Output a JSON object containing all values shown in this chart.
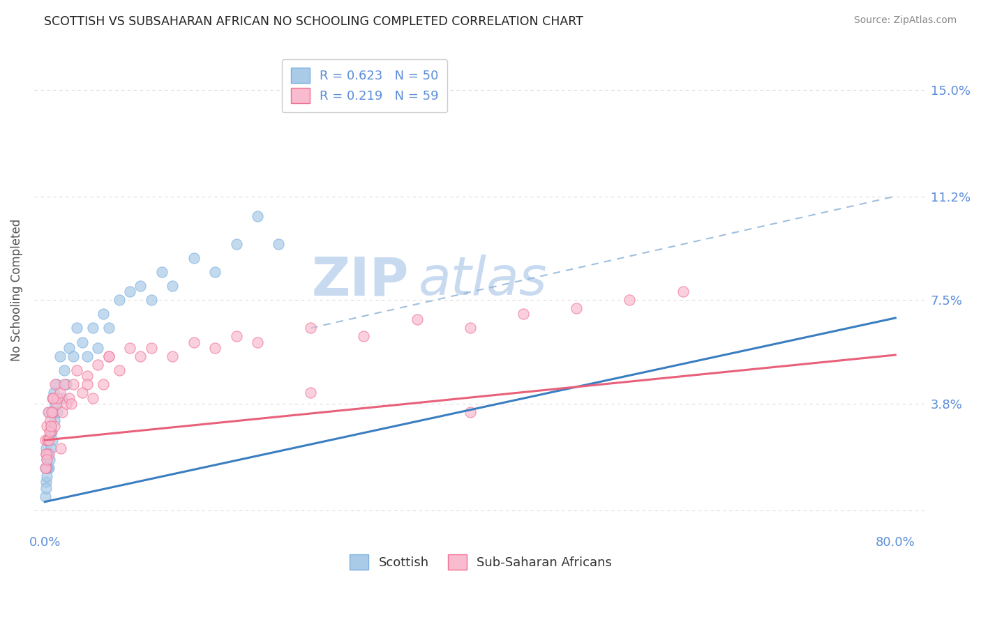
{
  "title": "SCOTTISH VS SUBSAHARAN AFRICAN NO SCHOOLING COMPLETED CORRELATION CHART",
  "source": "Source: ZipAtlas.com",
  "ylabel": "No Schooling Completed",
  "y_ticks": [
    0.0,
    3.8,
    7.5,
    11.2,
    15.0
  ],
  "y_tick_labels": [
    "",
    "3.8%",
    "7.5%",
    "11.2%",
    "15.0%"
  ],
  "xlim": [
    -1.0,
    83.0
  ],
  "ylim": [
    -0.8,
    16.5
  ],
  "legend_r_entries": [
    {
      "label": "R = 0.623   N = 50",
      "color": "#aacbe8"
    },
    {
      "label": "R = 0.219   N = 59",
      "color": "#f8bbd0"
    }
  ],
  "scottish_x": [
    0.05,
    0.1,
    0.15,
    0.2,
    0.25,
    0.3,
    0.35,
    0.4,
    0.5,
    0.6,
    0.7,
    0.8,
    0.9,
    1.0,
    1.1,
    1.2,
    1.4,
    1.6,
    1.8,
    2.0,
    2.3,
    2.7,
    3.0,
    3.5,
    4.0,
    4.5,
    5.0,
    5.5,
    6.0,
    7.0,
    8.0,
    9.0,
    10.0,
    11.0,
    12.0,
    14.0,
    16.0,
    18.0,
    20.0,
    22.0,
    0.08,
    0.12,
    0.18,
    0.22,
    0.28,
    0.45,
    0.55,
    0.65,
    0.75,
    0.85
  ],
  "scottish_y": [
    1.5,
    2.2,
    1.0,
    1.8,
    2.5,
    2.0,
    3.5,
    1.5,
    2.8,
    3.0,
    2.5,
    4.0,
    3.2,
    3.8,
    4.5,
    3.5,
    5.5,
    4.0,
    5.0,
    4.5,
    5.8,
    5.5,
    6.5,
    6.0,
    5.5,
    6.5,
    5.8,
    7.0,
    6.5,
    7.5,
    7.8,
    8.0,
    7.5,
    8.5,
    8.0,
    9.0,
    8.5,
    9.5,
    10.5,
    9.5,
    0.5,
    0.8,
    1.2,
    2.0,
    1.5,
    1.8,
    2.2,
    2.8,
    3.5,
    4.2
  ],
  "subsaharan_x": [
    0.05,
    0.1,
    0.15,
    0.2,
    0.25,
    0.3,
    0.4,
    0.5,
    0.6,
    0.7,
    0.8,
    0.9,
    1.0,
    1.1,
    1.2,
    1.4,
    1.6,
    1.8,
    2.0,
    2.3,
    2.7,
    3.0,
    3.5,
    4.0,
    4.5,
    5.0,
    5.5,
    6.0,
    7.0,
    8.0,
    9.0,
    10.0,
    12.0,
    14.0,
    16.0,
    18.0,
    20.0,
    25.0,
    30.0,
    35.0,
    40.0,
    45.0,
    50.0,
    55.0,
    60.0,
    0.08,
    0.12,
    0.18,
    0.35,
    0.45,
    0.55,
    0.65,
    0.75,
    1.5,
    2.5,
    4.0,
    6.0,
    25.0,
    40.0
  ],
  "subsaharan_y": [
    2.5,
    1.5,
    2.0,
    3.0,
    2.5,
    3.5,
    2.0,
    3.2,
    2.8,
    4.0,
    3.5,
    3.0,
    4.5,
    3.8,
    4.0,
    4.2,
    3.5,
    4.5,
    3.8,
    4.0,
    4.5,
    5.0,
    4.2,
    4.8,
    4.0,
    5.2,
    4.5,
    5.5,
    5.0,
    5.8,
    5.5,
    5.8,
    5.5,
    6.0,
    5.8,
    6.2,
    6.0,
    6.5,
    6.2,
    6.8,
    6.5,
    7.0,
    7.2,
    7.5,
    7.8,
    1.5,
    2.0,
    1.8,
    2.5,
    2.8,
    3.0,
    3.5,
    4.0,
    2.2,
    3.8,
    4.5,
    5.5,
    4.2,
    3.5
  ],
  "blue_line_color": "#3a7ec0",
  "pink_line_color": "#e8607a",
  "blue_dot_fill": "#aacbe8",
  "blue_dot_edge": "#7aafe0",
  "pink_dot_fill": "#f8bbd0",
  "pink_dot_edge": "#f07090",
  "dashed_line_color": "#90b4d8",
  "grid_color": "#cccccc",
  "axis_tick_color": "#5b8dd9",
  "title_color": "#222222",
  "source_color": "#888888",
  "watermark_zip": "ZIP",
  "watermark_atlas": "atlas",
  "watermark_color": "#c8daf0",
  "regression_blue_slope": 0.082,
  "regression_blue_intercept": 0.3,
  "regression_pink_slope": 0.038,
  "regression_pink_intercept": 2.5,
  "dashed_start_x": 25.0,
  "dashed_start_y": 6.5,
  "dashed_end_x": 80.0,
  "dashed_end_y": 11.2
}
